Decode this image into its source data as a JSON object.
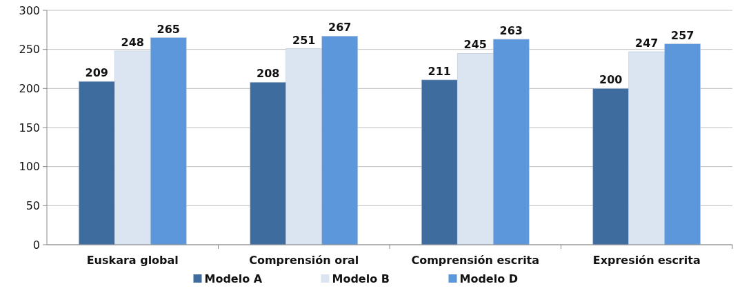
{
  "chart_data": {
    "type": "bar",
    "categories": [
      "Euskara global",
      "Comprensión oral",
      "Comprensión escrita",
      "Expresión escrita"
    ],
    "series": [
      {
        "name": "Modelo A",
        "color": "#3f6c9f",
        "values": [
          209,
          208,
          211,
          200
        ]
      },
      {
        "name": "Modelo B",
        "color": "#dbe5f2",
        "values": [
          248,
          251,
          245,
          247
        ]
      },
      {
        "name": "Modelo D",
        "color": "#5b97da",
        "values": [
          265,
          267,
          263,
          257
        ]
      }
    ],
    "ylim": [
      0,
      300
    ],
    "yticks": [
      0,
      50,
      100,
      150,
      200,
      250,
      300
    ],
    "grid": "y",
    "legend": "bottom",
    "data_labels": true
  }
}
